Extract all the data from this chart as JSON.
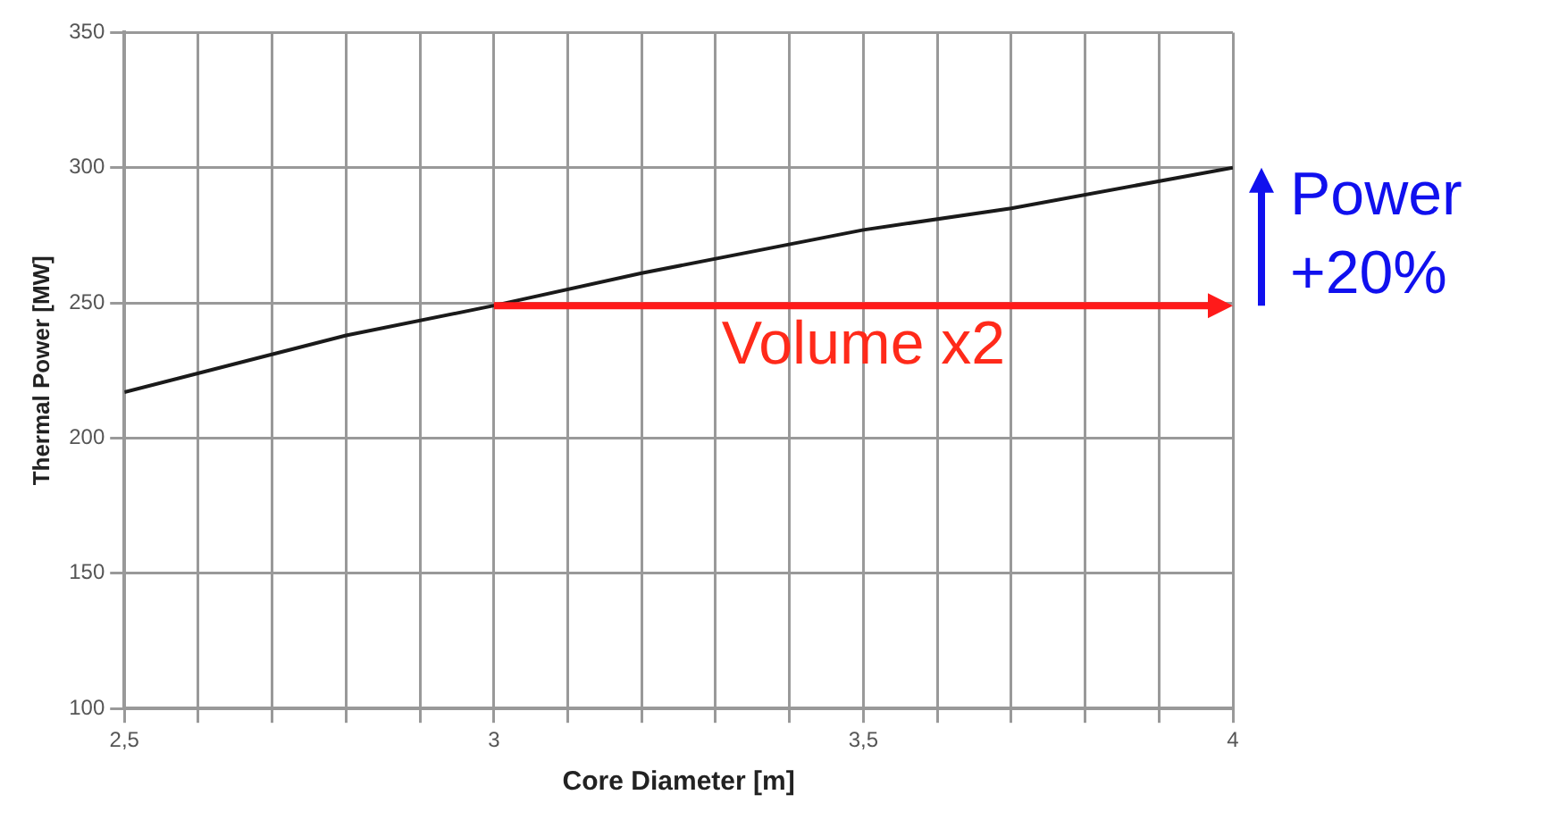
{
  "chart_data": {
    "type": "line",
    "xlabel": "Core Diameter [m]",
    "ylabel": "Thermal Power [MW]",
    "x": [
      2.5,
      2.8,
      3,
      3.2,
      3.5,
      3.7,
      4
    ],
    "series": [
      {
        "color": "#1a1a1a",
        "values": [
          217,
          238,
          249,
          261,
          277,
          285,
          300
        ]
      }
    ],
    "xlim": [
      2.5,
      4
    ],
    "xticks": [
      {
        "value": 2.5,
        "label": "2,5"
      },
      {
        "value": 2.6,
        "label": null
      },
      {
        "value": 2.7,
        "label": null
      },
      {
        "value": 2.8,
        "label": null
      },
      {
        "value": 2.9,
        "label": null
      },
      3,
      {
        "value": 3.1,
        "label": null
      },
      {
        "value": 3.2,
        "label": null
      },
      {
        "value": 3.3,
        "label": null
      },
      {
        "value": 3.4,
        "label": null
      },
      {
        "value": 3.5,
        "label": "3,5"
      },
      {
        "value": 3.6,
        "label": null
      },
      {
        "value": 3.7,
        "label": null
      },
      {
        "value": 3.8,
        "label": null
      },
      {
        "value": 3.9,
        "label": null
      },
      4
    ],
    "ylim": [
      100,
      350
    ],
    "yticks": [
      100,
      150,
      200,
      250,
      300,
      350
    ],
    "grid": true,
    "legend": false,
    "marker": "none",
    "line_style": "solid",
    "annotations": [
      "Volume x2",
      "Power +20%"
    ]
  }
}
